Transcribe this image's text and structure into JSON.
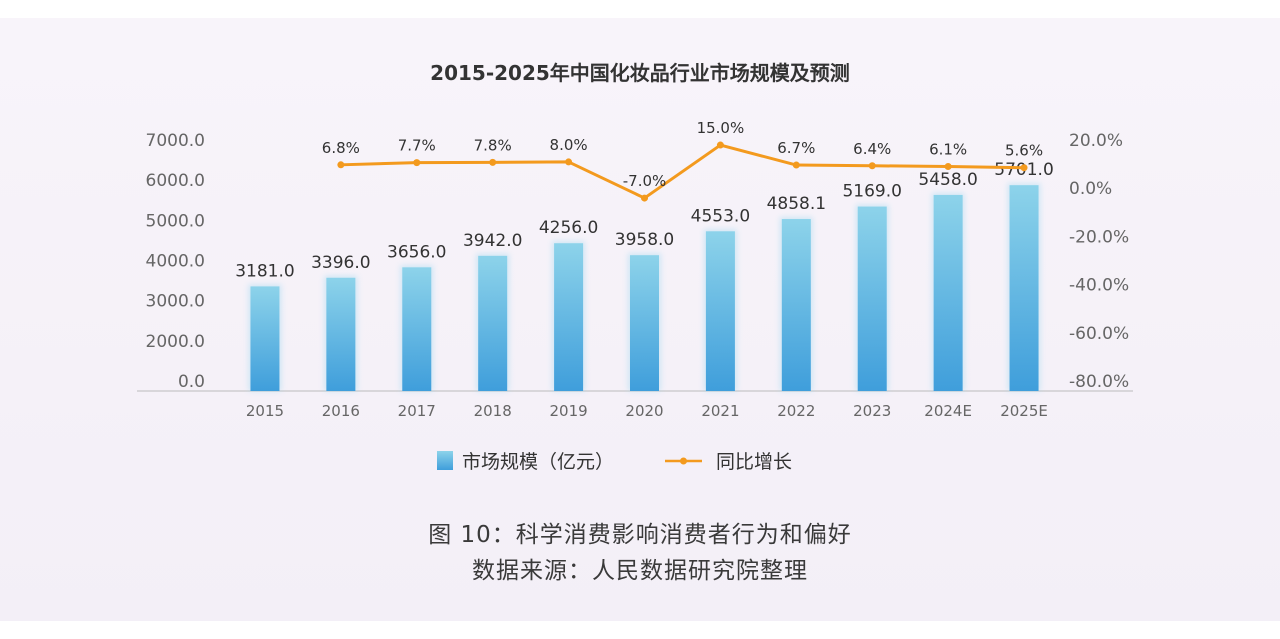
{
  "chart_data": {
    "type": "bar",
    "title": "2015-2025年中国化妆品行业市场规模及预测",
    "categories": [
      "2015",
      "2016",
      "2017",
      "2018",
      "2019",
      "2020",
      "2021",
      "2022",
      "2023",
      "2024E",
      "2025E"
    ],
    "series": [
      {
        "name": "市场规模（亿元）",
        "type": "bar",
        "axis": "left",
        "values": [
          3181.0,
          3396.0,
          3656.0,
          3942.0,
          4256.0,
          3958.0,
          4553.0,
          4858.1,
          5169.0,
          5458.0,
          5701.0
        ],
        "labels": [
          "3181.0",
          "3396.0",
          "3656.0",
          "3942.0",
          "4256.0",
          "3958.0",
          "4553.0",
          "4858.1",
          "5169.0",
          "5458.0",
          "5701.0"
        ]
      },
      {
        "name": "同比增长",
        "type": "line",
        "axis": "right",
        "values": [
          null,
          6.8,
          7.7,
          7.8,
          8.0,
          -7.0,
          15.0,
          6.7,
          6.4,
          6.1,
          5.6
        ],
        "labels": [
          "",
          "6.8%",
          "7.7%",
          "7.8%",
          "8.0%",
          "-7.0%",
          "15.0%",
          "6.7%",
          "6.4%",
          "6.1%",
          "5.6%"
        ]
      }
    ],
    "y_left_ticks": [
      "0.0",
      "2000.0",
      "3000.0",
      "4000.0",
      "5000.0",
      "6000.0",
      "7000.0"
    ],
    "y_right_ticks": [
      "-80.0%",
      "-60.0%",
      "-40.0%",
      "-20.0%",
      "0.0%",
      "20.0%"
    ],
    "y_right_range": [
      -80,
      20
    ],
    "legend_position": "bottom-center",
    "colors": {
      "bar_top": "#8dd3ea",
      "bar_bottom": "#3f9edb",
      "line": "#f39a1e",
      "label": "#333333",
      "tick": "#666666"
    }
  },
  "captions": {
    "line1": "图 10：科学消费影响消费者行为和偏好",
    "line2": "数据来源：人民数据研究院整理"
  }
}
